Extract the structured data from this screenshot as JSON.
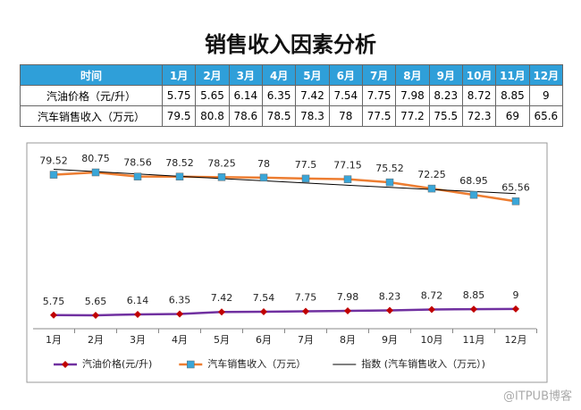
{
  "title": "销售收入因素分析",
  "table": {
    "header": [
      "时间",
      "1月",
      "2月",
      "3月",
      "4月",
      "5月",
      "6月",
      "7月",
      "8月",
      "9月",
      "10月",
      "11月",
      "12月"
    ],
    "rows": [
      [
        "汽油价格（元/升）",
        "5.75",
        "5.65",
        "6.14",
        "6.35",
        "7.42",
        "7.54",
        "7.75",
        "7.98",
        "8.23",
        "8.72",
        "8.85",
        "9"
      ],
      [
        "汽车销售收入（万元）",
        "79.5",
        "80.8",
        "78.6",
        "78.5",
        "78.3",
        "78",
        "77.5",
        "77.2",
        "75.5",
        "72.3",
        "69",
        "65.6"
      ]
    ]
  },
  "chart_data": {
    "type": "line",
    "categories": [
      "1月",
      "2月",
      "3月",
      "4月",
      "5月",
      "6月",
      "7月",
      "8月",
      "9月",
      "10月",
      "11月",
      "12月"
    ],
    "series": [
      {
        "name": "汽油价格(元/升)",
        "color": "#7030a0",
        "marker": "diamond",
        "marker_color": "#c00000",
        "values": [
          5.75,
          5.65,
          6.14,
          6.35,
          7.42,
          7.54,
          7.75,
          7.98,
          8.23,
          8.72,
          8.85,
          9
        ]
      },
      {
        "name": "汽车销售收入（万元）",
        "color": "#ed7d31",
        "marker": "square",
        "marker_color": "#3aa6d8",
        "values": [
          79.52,
          80.75,
          78.56,
          78.52,
          78.25,
          78,
          77.5,
          77.15,
          75.52,
          72.25,
          68.95,
          65.56
        ],
        "trendline": {
          "type": "exponential",
          "name": "指数 (汽车销售收入（万元）)",
          "color": "#000000"
        }
      }
    ]
  },
  "watermark": "@ITPUB博客"
}
